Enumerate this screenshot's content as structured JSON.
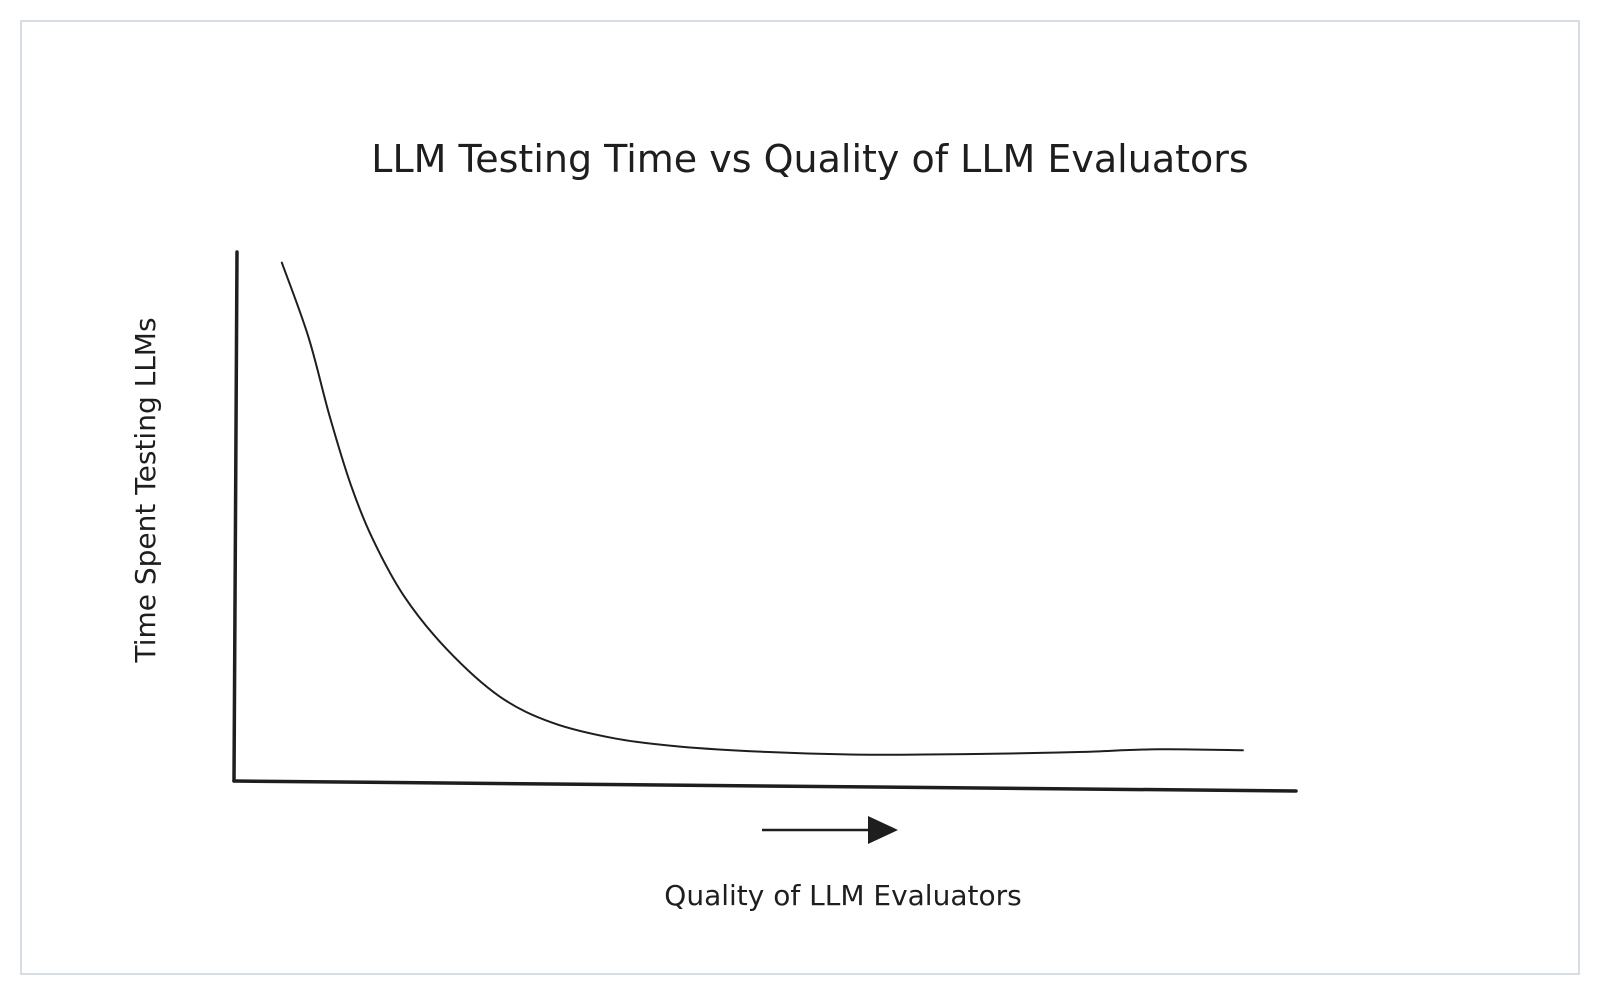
{
  "chart_data": {
    "type": "line",
    "title": "LLM Testing Time vs Quality of LLM Evaluators",
    "xlabel": "Quality of LLM Evaluators",
    "ylabel": "Time Spent Testing LLMs",
    "xlim": [
      0,
      10
    ],
    "ylim": [
      0,
      10
    ],
    "grid": false,
    "legend": "none",
    "axis_ticks": "none",
    "colors": {
      "line": "#1e1e1e",
      "axis": "#1e1e1e",
      "frame": "#d5dde6",
      "background": "#ffffff"
    },
    "series": [
      {
        "x": [
          0.45,
          0.7,
          0.9,
          1.1,
          1.3,
          1.6,
          2.0,
          2.5,
          3.0,
          3.6,
          4.2,
          5.0,
          5.8,
          6.5,
          7.3,
          8.0,
          8.7,
          9.5
        ],
        "y": [
          9.8,
          8.4,
          6.9,
          5.6,
          4.6,
          3.5,
          2.5,
          1.6,
          1.1,
          0.8,
          0.65,
          0.55,
          0.5,
          0.5,
          0.52,
          0.55,
          0.6,
          0.58
        ]
      }
    ]
  }
}
